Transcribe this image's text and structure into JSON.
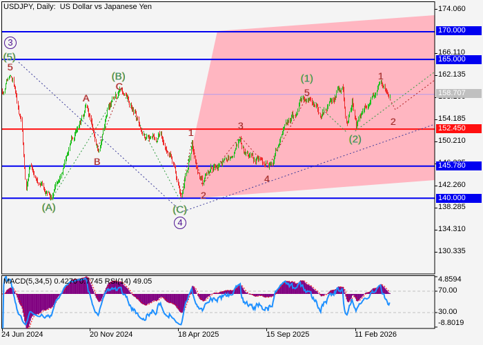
{
  "window": {
    "title": "USDJPY, Daily:  US Dollar vs Japanese Yen"
  },
  "price_axis": {
    "ticks": [
      "174.060",
      "166.110",
      "162.135",
      "158.160",
      "154.185",
      "150.210",
      "146.235",
      "142.260",
      "138.285",
      "134.310",
      "130.335"
    ],
    "tick_values": [
      174.06,
      166.11,
      162.135,
      158.16,
      154.185,
      150.21,
      146.235,
      142.26,
      138.285,
      134.31,
      130.335
    ]
  },
  "levels": [
    {
      "label": "170.000",
      "price": 170.0,
      "color": "#0000f0"
    },
    {
      "label": "165.000",
      "price": 165.0,
      "color": "#0000f0"
    },
    {
      "label": "158.707",
      "price": 158.707,
      "color": "#c0c0c0",
      "kind": "current-price"
    },
    {
      "label": "152.450",
      "price": 152.45,
      "color": "#ff1010"
    },
    {
      "label": "145.780",
      "price": 145.78,
      "color": "#0000f0"
    },
    {
      "label": "140.000",
      "price": 140.0,
      "color": "#0000f0"
    }
  ],
  "time_axis": {
    "labels": [
      {
        "label": "24 Jun 2024",
        "bar": 0
      },
      {
        "label": "20 Nov 2024",
        "bar": 107
      },
      {
        "label": "18 Apr 2025",
        "bar": 214.5
      },
      {
        "label": "15 Sep 2025",
        "bar": 322
      },
      {
        "label": "11 Feb 2026",
        "bar": 430
      }
    ]
  },
  "indicator": {
    "header": "MACD(5,34,5) 0.4270 0.7745 RSI(14) 49.05",
    "scale": [
      "4.8594",
      "70.00",
      "30.00",
      "-8.8019"
    ],
    "macd_max": 4.8594,
    "macd_min": -8.8019,
    "rsi_levels": [
      70,
      30
    ],
    "colors": {
      "histogram": "#800080",
      "signal": "#ff0000",
      "rsi": "#1e90ff",
      "levels": "#c0c0c0"
    }
  },
  "waves": [
    {
      "text": "3",
      "style": "circled"
    },
    {
      "text": "(5)",
      "style": "green"
    },
    {
      "text": "5",
      "style": "red"
    },
    {
      "text": "(A)",
      "style": "green"
    },
    {
      "text": "A",
      "style": "red"
    },
    {
      "text": "B",
      "style": "red"
    },
    {
      "text": "(B)",
      "style": "green"
    },
    {
      "text": "C",
      "style": "red"
    },
    {
      "text": "(C)",
      "style": "green"
    },
    {
      "text": "4",
      "style": "circled"
    },
    {
      "text": "1",
      "style": "red"
    },
    {
      "text": "2",
      "style": "red"
    },
    {
      "text": "3",
      "style": "red"
    },
    {
      "text": "4",
      "style": "red"
    },
    {
      "text": "5",
      "style": "red"
    },
    {
      "text": "(1)",
      "style": "green"
    },
    {
      "text": "(2)",
      "style": "green"
    },
    {
      "text": "1",
      "style": "red"
    },
    {
      "text": "2",
      "style": "red"
    }
  ],
  "chart_data": {
    "type": "candlestick",
    "title": "USDJPY, Daily:  US Dollar vs Japanese Yen",
    "xlabel": "",
    "ylabel": "",
    "ylim": [
      128.0,
      174.8
    ],
    "grid": false,
    "last_price": 158.707,
    "x_ticks": [
      "24 Jun 2024",
      "20 Nov 2024",
      "18 Apr 2025",
      "15 Sep 2025",
      "11 Feb 2026"
    ],
    "y_ticks": [
      174.06,
      166.11,
      162.135,
      158.16,
      154.185,
      150.21,
      146.235,
      142.26,
      138.285,
      134.31,
      130.335
    ],
    "colors": {
      "up": "#1fbf1f",
      "down": "#ee2c2c",
      "target_zone": "#ffb6c1"
    },
    "price_path": [
      {
        "bar": 0,
        "price": 159.55
      },
      {
        "bar": 8,
        "price": 161.79
      },
      {
        "bar": 14,
        "price": 160.17
      },
      {
        "bar": 23,
        "price": 153.33
      },
      {
        "bar": 29,
        "price": 142.15
      },
      {
        "bar": 35,
        "price": 145.87
      },
      {
        "bar": 48,
        "price": 142.77
      },
      {
        "bar": 59,
        "price": 139.91
      },
      {
        "bar": 69,
        "price": 143.39
      },
      {
        "bar": 82,
        "price": 149.6
      },
      {
        "bar": 92,
        "price": 152.71
      },
      {
        "bar": 103,
        "price": 156.44
      },
      {
        "bar": 111,
        "price": 152.09
      },
      {
        "bar": 117,
        "price": 148.98
      },
      {
        "bar": 128,
        "price": 155.82
      },
      {
        "bar": 145,
        "price": 159.3
      },
      {
        "bar": 161,
        "price": 155.2
      },
      {
        "bar": 174,
        "price": 150.85
      },
      {
        "bar": 195,
        "price": 150.85
      },
      {
        "bar": 206,
        "price": 147.74
      },
      {
        "bar": 212,
        "price": 144.01
      },
      {
        "bar": 218,
        "price": 140.04
      },
      {
        "bar": 224,
        "price": 144.63
      },
      {
        "bar": 231,
        "price": 149.6
      },
      {
        "bar": 238,
        "price": 144.63
      },
      {
        "bar": 244,
        "price": 142.4
      },
      {
        "bar": 254,
        "price": 145.25
      },
      {
        "bar": 266,
        "price": 146.49
      },
      {
        "bar": 279,
        "price": 147.74
      },
      {
        "bar": 290,
        "price": 151.1
      },
      {
        "bar": 296,
        "price": 147.74
      },
      {
        "bar": 313,
        "price": 147.37
      },
      {
        "bar": 324,
        "price": 145.5
      },
      {
        "bar": 334,
        "price": 148.98
      },
      {
        "bar": 342,
        "price": 153.33
      },
      {
        "bar": 355,
        "price": 154.58
      },
      {
        "bar": 363,
        "price": 157.06
      },
      {
        "bar": 371,
        "price": 157.93
      },
      {
        "bar": 380,
        "price": 156.07
      },
      {
        "bar": 391,
        "price": 155.2
      },
      {
        "bar": 399,
        "price": 156.44
      },
      {
        "bar": 409,
        "price": 159.18
      },
      {
        "bar": 415,
        "price": 158.93
      },
      {
        "bar": 418,
        "price": 153.96
      },
      {
        "bar": 420,
        "price": 152.34
      },
      {
        "bar": 426,
        "price": 157.06
      },
      {
        "bar": 431,
        "price": 152.59
      },
      {
        "bar": 439,
        "price": 155.82
      },
      {
        "bar": 451,
        "price": 158.93
      },
      {
        "bar": 462,
        "price": 160.17
      },
      {
        "bar": 468,
        "price": 159.55
      },
      {
        "bar": 472,
        "price": 158.707
      }
    ],
    "horizontal_levels": [
      170.0,
      165.0,
      158.707,
      152.45,
      145.78,
      140.0
    ],
    "target_zone": [
      {
        "bar": 217.6,
        "price": 139.79
      },
      {
        "bar": 262.2,
        "price": 170.12
      },
      {
        "bar": 527,
        "price": 172.98
      },
      {
        "bar": 527,
        "price": 143.27
      }
    ],
    "overlays": [
      {
        "color": "#3a3a9a",
        "points": [
          [
            20.2,
            164.51
          ],
          [
            214.3,
            138.15
          ]
        ]
      },
      {
        "color": "#3a3a9a",
        "points": [
          [
            221,
            137.65
          ],
          [
            527,
            153.33
          ]
        ]
      },
      {
        "color": "#2e9a3e",
        "points": [
          [
            60.5,
            139.91
          ],
          [
            144.5,
            159.8
          ]
        ]
      },
      {
        "color": "#2e9a3e",
        "points": [
          [
            144.5,
            159.8
          ],
          [
            217.6,
            139.41
          ]
        ]
      },
      {
        "color": "#2e9a3e",
        "points": [
          [
            371.4,
            158.56
          ],
          [
            420,
            151.85
          ]
        ]
      },
      {
        "color": "#2e9a3e",
        "points": [
          [
            430,
            152.09
          ],
          [
            527,
            162.78
          ]
        ]
      },
      {
        "color": "#b02020",
        "points": [
          [
            103.4,
            156.44
          ],
          [
            116.8,
            149.23
          ],
          [
            144.5,
            159.55
          ]
        ]
      },
      {
        "color": "#b02020",
        "points": [
          [
            217.6,
            140.04
          ],
          [
            231,
            150.22
          ],
          [
            243.7,
            142.4
          ],
          [
            290,
            151.1
          ],
          [
            323.5,
            145.5
          ],
          [
            371.4,
            158.31
          ]
        ]
      },
      {
        "color": "#b02020",
        "points": [
          [
            464.7,
            160.05
          ],
          [
            479,
            155.95
          ],
          [
            527,
            161.29
          ]
        ]
      }
    ],
    "wave_labels": [
      {
        "text": "③",
        "bar": 10,
        "price": 163.6
      },
      {
        "text": "(5)",
        "bar": 8.5,
        "price": 161.0
      },
      {
        "text": "5",
        "bar": 10,
        "price": 159.3
      },
      {
        "text": "(A)",
        "bar": 57,
        "price": 138.3
      },
      {
        "text": "A",
        "bar": 103,
        "price": 157.9
      },
      {
        "text": "B",
        "bar": 116,
        "price": 146.6
      },
      {
        "text": "(B)",
        "bar": 142,
        "price": 161.8
      },
      {
        "text": "C",
        "bar": 143,
        "price": 160.3
      },
      {
        "text": "(C)",
        "bar": 217,
        "price": 137.7
      },
      {
        "text": "④",
        "bar": 217,
        "price": 135.5
      },
      {
        "text": "1",
        "bar": 230,
        "price": 151.9
      },
      {
        "text": "2",
        "bar": 245,
        "price": 140.5
      },
      {
        "text": "3",
        "bar": 291,
        "price": 153.1
      },
      {
        "text": "4",
        "bar": 323,
        "price": 143.5
      },
      {
        "text": "5",
        "bar": 371,
        "price": 159.0
      },
      {
        "text": "(1)",
        "bar": 371,
        "price": 161.5
      },
      {
        "text": "(2)",
        "bar": 430,
        "price": 150.6
      },
      {
        "text": "1",
        "bar": 461,
        "price": 161.9
      },
      {
        "text": "2",
        "bar": 476,
        "price": 153.8
      }
    ],
    "indicators": {
      "macd": {
        "params": [
          5,
          34,
          5
        ],
        "value": 0.427,
        "signal": 0.7745,
        "range": [
          -8.8019,
          4.8594
        ]
      },
      "rsi": {
        "period": 14,
        "value": 49.05,
        "levels": [
          70,
          30
        ]
      }
    }
  }
}
